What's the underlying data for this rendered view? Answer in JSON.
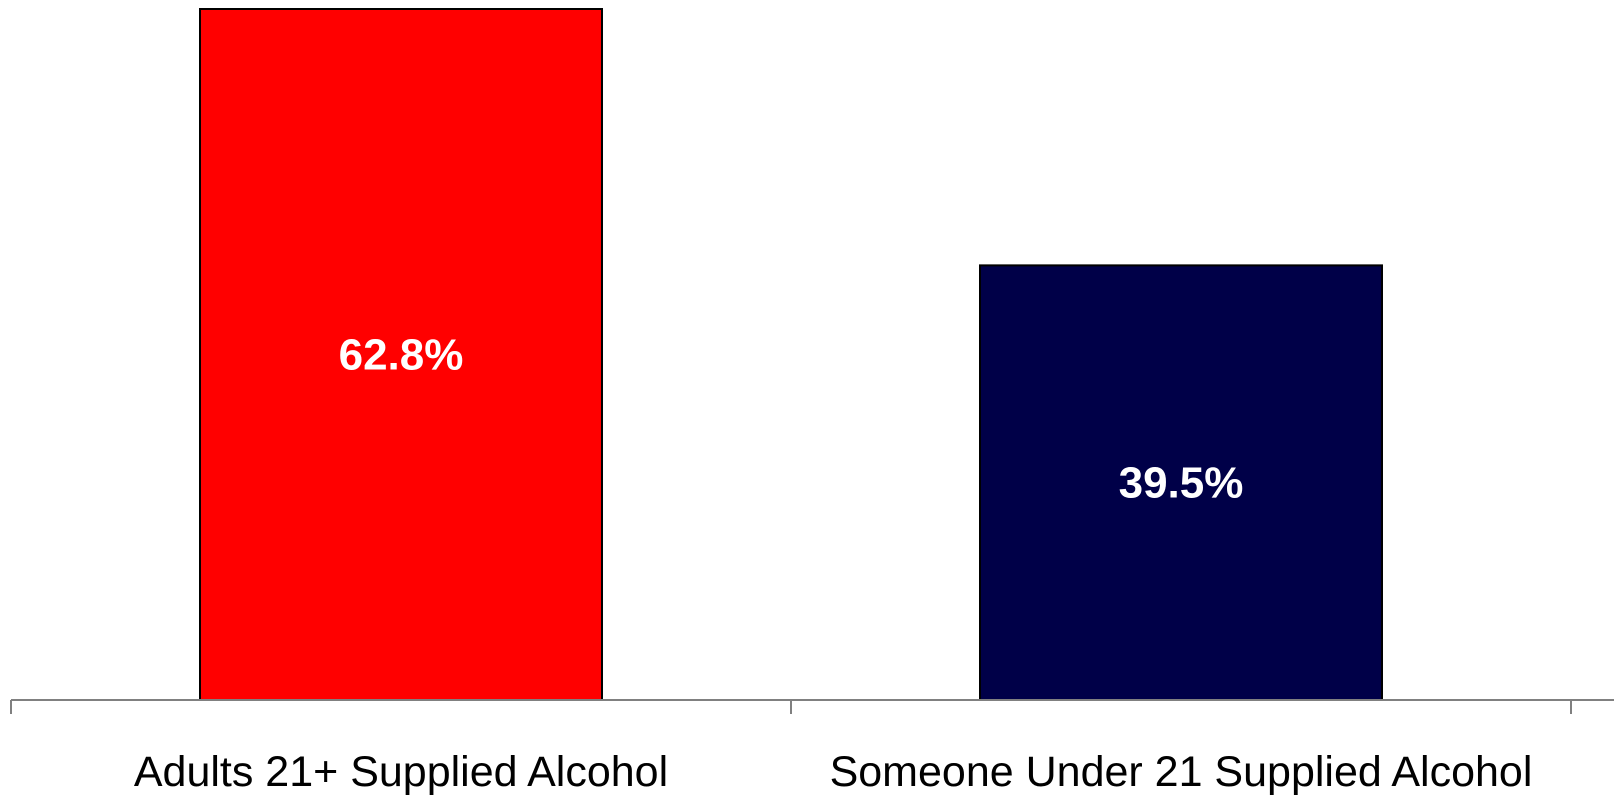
{
  "chart_data": {
    "type": "bar",
    "categories": [
      "Adults 21+ Supplied Alcohol",
      "Someone Under 21 Supplied Alcohol"
    ],
    "values": [
      62.8,
      39.5
    ],
    "data_labels": [
      "62.8%",
      "39.5%"
    ],
    "colors": [
      "#ff0000",
      "#000048"
    ],
    "title": "",
    "xlabel": "",
    "ylabel": "",
    "ylim": [
      0,
      62.8
    ],
    "grid": false,
    "legend": "none"
  }
}
